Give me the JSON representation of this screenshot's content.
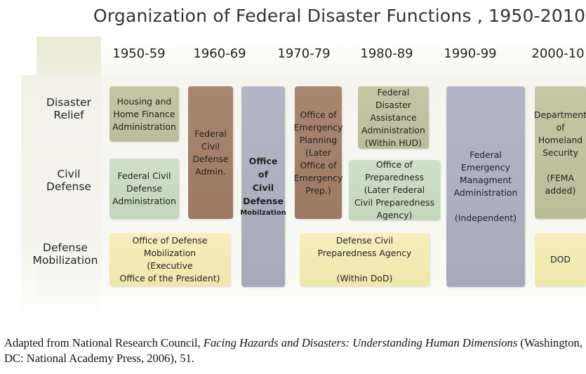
{
  "title": "Organization of Federal Disaster Functions , 1950-2010",
  "decades": [
    "1950-59",
    "1960-69",
    "1970-79",
    "1980-89",
    "1990-99",
    "2000-10"
  ],
  "rows": {
    "disaster_relief": "Disaster\nRelief",
    "civil_defense": "Civil\nDefense",
    "defense_mobilization": "Defense\nMobilization"
  },
  "boxes": {
    "housing_home_finance": "Housing and\nHome Finance\nAdministration",
    "federal_civil_defense_admin_1950s": "Federal Civil\nDefense\nAdministration",
    "federal_civil_defense_admin_1960s": "Federal\nCivil\nDefense\nAdmin.",
    "office_civil_defense_mobilization_main": "Office\nof\nCivil\nDefense",
    "office_civil_defense_mobilization_tail": "Mobilzation",
    "office_emergency_planning": "Office of\nEmergency\nPlanning\n(Later\nOffice of\nEmergency\nPrep.)",
    "federal_disaster_assistance": "Federal Disaster\nAssistance\nAdministration\n(Within HUD)",
    "office_of_preparedness": "Office of\nPreparedness\n(Later Federal\nCivil Preparedness\nAgency)",
    "fema": "Federal\nEmergency\nManagment\nAdministration\n\n(Independent)",
    "dhs": "Department\nof\nHomeland\nSecurity\n\n(FEMA\nadded)",
    "office_defense_mobilization": "Office of Defense\nMobilization\n(Executive\nOffice of the President)",
    "defense_civil_preparedness": "Defense Civil\nPreparedness Agency\n\n(Within DoD)",
    "dod": "DOD"
  },
  "caption": {
    "prefix": "Adapted from National Research Council, ",
    "italic": "Facing Hazards and Disasters: Understanding Human Dimensions",
    "suffix": " (Washington, DC: National Academy Press, 2006), 51."
  },
  "colors": {
    "khaki": "#c1c2a1",
    "green": "#c8dbc1",
    "brown": "#a4806b",
    "slate": "#aeb0c0",
    "yellow": "#f2eab4"
  }
}
